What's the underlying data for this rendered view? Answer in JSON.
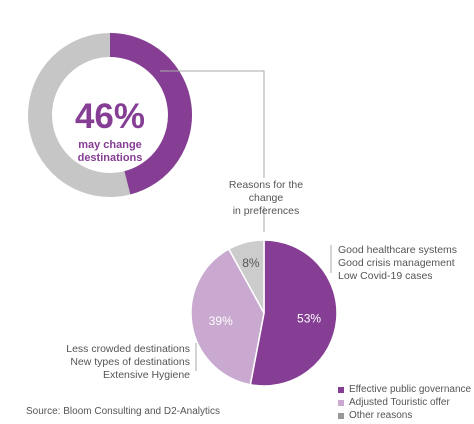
{
  "colors": {
    "primary": "#853e93",
    "secondary": "#c9a9cf",
    "neutral": "#cccccc",
    "ring_track": "#c6c6c6",
    "text": "#555555"
  },
  "headline": {
    "value": 46,
    "value_text": "46%",
    "line1": "may change",
    "line2": "destinations"
  },
  "connector_label": {
    "line1": "Reasons for the change",
    "line2": "in preferences"
  },
  "annotations": {
    "right_group": [
      "Good healthcare systems",
      "Good crisis management",
      "Low Covid-19 cases"
    ],
    "left_group": [
      "Less crowded destinations",
      "New types of destinations",
      "Extensive Hygiene"
    ]
  },
  "chart_data": [
    {
      "type": "pie",
      "subtype": "donut",
      "values": [
        46,
        54
      ],
      "labels": [
        "may change destinations",
        ""
      ],
      "center_text": "46%",
      "colors": [
        "#853e93",
        "#c6c6c6"
      ]
    },
    {
      "type": "pie",
      "slices": [
        {
          "name": "Effective public governance",
          "value": 53,
          "label": "53%",
          "color": "#853e93"
        },
        {
          "name": "Adjusted Touristic offer",
          "value": 39,
          "label": "39%",
          "color": "#c9a9cf"
        },
        {
          "name": "Other reasons",
          "value": 8,
          "label": "8%",
          "color": "#cccccc"
        }
      ],
      "legend_position": "bottom-right"
    }
  ],
  "legend": [
    {
      "label": "Effective public governance",
      "color": "#853e93"
    },
    {
      "label": "Adjusted Touristic offer",
      "color": "#c9a9cf"
    },
    {
      "label": "Other reasons",
      "color": "#999999"
    }
  ],
  "source": "Source: Bloom Consulting and D2-Analytics"
}
